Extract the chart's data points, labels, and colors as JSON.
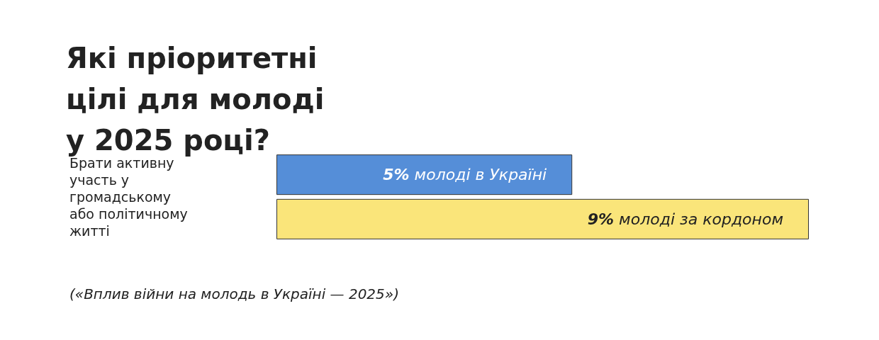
{
  "chart_data": {
    "type": "bar",
    "orientation": "horizontal",
    "title": "Які пріоритетні цілі для молоді у 2025 році?",
    "categories": [
      "Брати активну участь у громадському або політичному житті"
    ],
    "series": [
      {
        "name": "молоді в Україні",
        "color": "#558ed8",
        "values": [
          5
        ],
        "value_labels": [
          "5%"
        ]
      },
      {
        "name": "молоді за кордоном",
        "color": "#fae57a",
        "values": [
          9
        ],
        "value_labels": [
          "9%"
        ]
      }
    ],
    "annotations": [
      "(«Вплив війни на молодь в Україні — 2025»)"
    ]
  }
}
